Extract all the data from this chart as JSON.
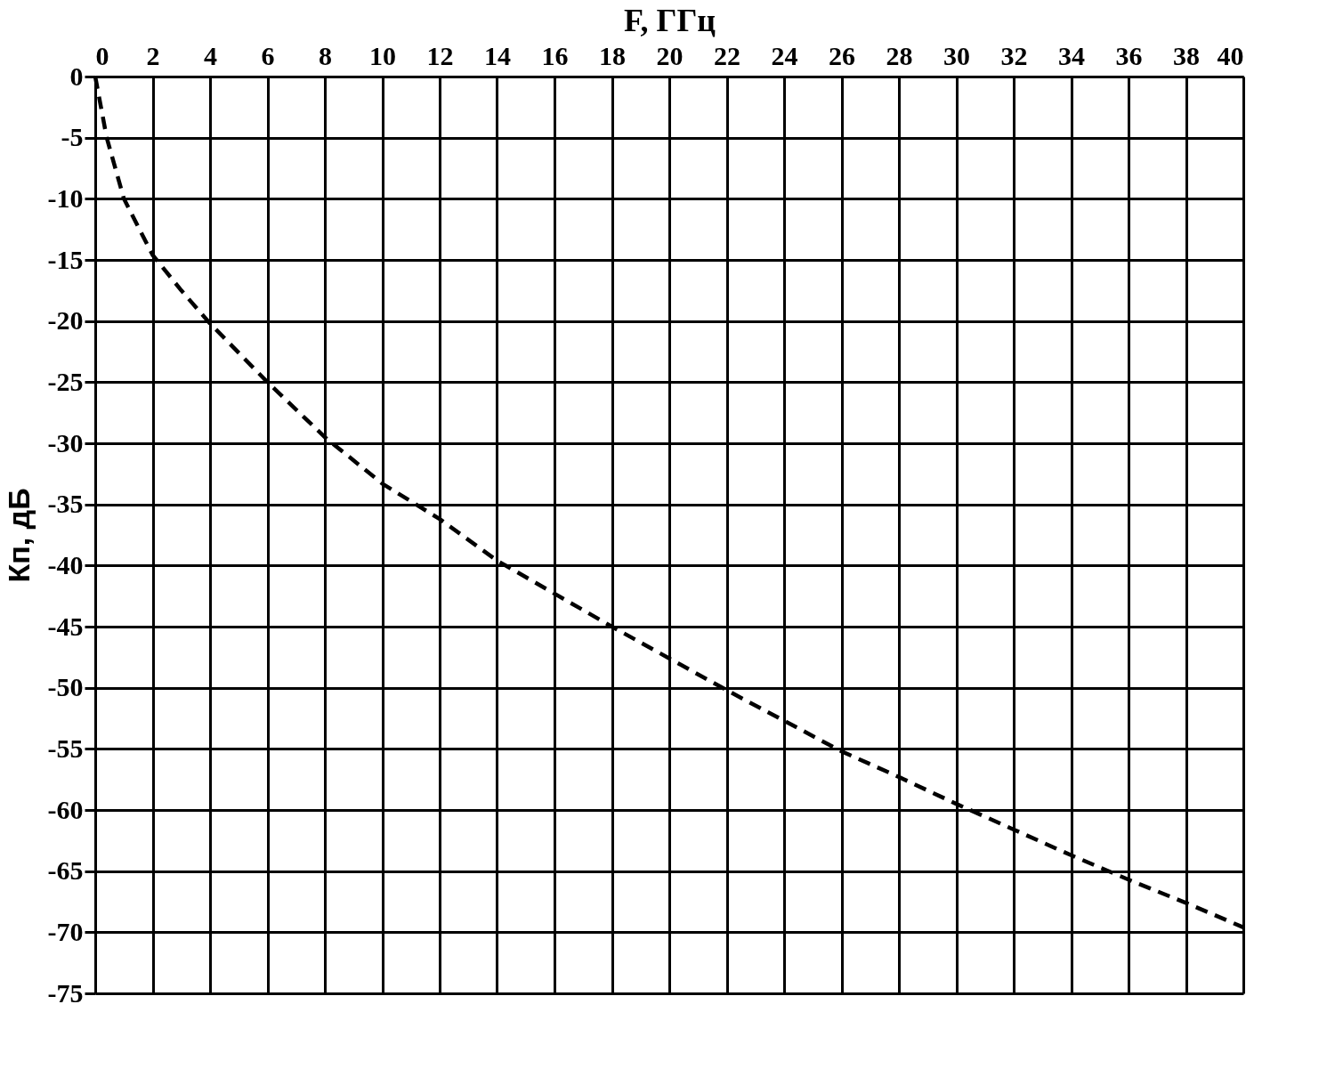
{
  "chart_data": {
    "type": "line",
    "xlabel": "F,  ГГц",
    "ylabel": "Кп,  дБ",
    "x": [
      0,
      0.4,
      1,
      2,
      3,
      4,
      6,
      8,
      10,
      12,
      14,
      16,
      18,
      20,
      22,
      24,
      26,
      28,
      30,
      32,
      34,
      36,
      38,
      40
    ],
    "series": [
      {
        "color": "#000000",
        "line_style": "dashed",
        "values": [
          0,
          -5,
          -10,
          -14.6,
          -17.5,
          -20.2,
          -25,
          -29.5,
          -33.3,
          -36.2,
          -39.6,
          -42.3,
          -45,
          -47.6,
          -50.2,
          -52.7,
          -55.2,
          -57.3,
          -59.5,
          -61.6,
          -63.7,
          -65.7,
          -67.6,
          -69.6
        ]
      }
    ],
    "xlim": [
      0,
      40
    ],
    "xticks": [
      0,
      2,
      4,
      6,
      8,
      10,
      12,
      14,
      16,
      18,
      20,
      22,
      24,
      26,
      28,
      30,
      32,
      34,
      36,
      38,
      40
    ],
    "ylim": [
      -75,
      0
    ],
    "yticks": [
      0,
      -5,
      -10,
      -15,
      -20,
      -25,
      -30,
      -35,
      -40,
      -45,
      -50,
      -55,
      -60,
      -65,
      -70,
      -75
    ],
    "grid": true,
    "marker": "none"
  }
}
